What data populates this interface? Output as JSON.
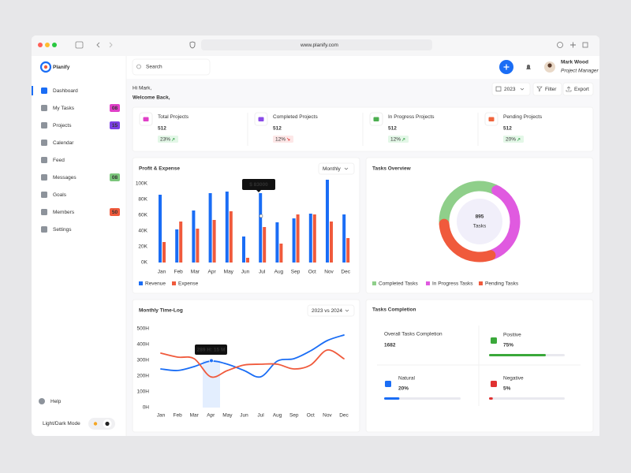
{
  "browser": {
    "url": "www.planify.com"
  },
  "brand": "Planify",
  "search_placeholder": "Search",
  "user": {
    "name": "Mark Wood",
    "role": "Project Manager"
  },
  "sidebar": {
    "items": [
      {
        "label": "Dashboard",
        "active": true
      },
      {
        "label": "My Tasks",
        "badge": "08",
        "badge_color": "#e040c8"
      },
      {
        "label": "Projects",
        "badge": "15",
        "badge_color": "#7b3fe4"
      },
      {
        "label": "Calendar"
      },
      {
        "label": "Feed"
      },
      {
        "label": "Messages",
        "badge": "08",
        "badge_color": "#7cc67c"
      },
      {
        "label": "Goals"
      },
      {
        "label": "Members",
        "badge": "50",
        "badge_color": "#f05a3c"
      },
      {
        "label": "Settings"
      }
    ],
    "help": "Help",
    "theme_toggle": "Light/Dark Mode"
  },
  "greeting": {
    "line1": "Hi Mark,",
    "line2": "Welcome Back,"
  },
  "toolbar": {
    "year": "2023",
    "filter": "Filter",
    "export": "Export"
  },
  "stats": [
    {
      "title": "Total Projects",
      "value": "512",
      "change": "23%",
      "trend": "up",
      "color": "#e040c8"
    },
    {
      "title": "Completed Projects",
      "value": "512",
      "change": "12%",
      "trend": "down",
      "color": "#8a4be8"
    },
    {
      "title": "In Progress Projects",
      "value": "512",
      "change": "12%",
      "trend": "up",
      "color": "#4caf50"
    },
    {
      "title": "Pending Projects",
      "value": "512",
      "change": "20%",
      "trend": "up",
      "color": "#f0643c"
    }
  ],
  "profit_chart": {
    "type": "bar",
    "title": "Profit & Expense",
    "period": "Monthly",
    "categories": [
      "Jan",
      "Feb",
      "Mar",
      "Apr",
      "May",
      "Jun",
      "Jul",
      "Aug",
      "Sep",
      "Oct",
      "Nov",
      "Dec"
    ],
    "series": [
      {
        "name": "Revenue",
        "color": "#1a6df5",
        "values": [
          86000,
          42000,
          66000,
          88000,
          90000,
          33000,
          88000,
          51000,
          56000,
          62000,
          105000,
          61000
        ]
      },
      {
        "name": "Expense",
        "color": "#f05a3c",
        "values": [
          26000,
          52000,
          43000,
          54000,
          65000,
          6000,
          45000,
          24000,
          61000,
          61000,
          52000,
          31000
        ]
      }
    ],
    "ylim": [
      0,
      110000
    ],
    "yticks": [
      {
        "value": 0,
        "label": "0K"
      },
      {
        "value": 20000,
        "label": "20K"
      },
      {
        "value": 40000,
        "label": "40K"
      },
      {
        "value": 60000,
        "label": "60K"
      },
      {
        "value": 80000,
        "label": "80K"
      },
      {
        "value": 100000,
        "label": "100K"
      }
    ],
    "annotation": "$ 83000"
  },
  "tasks_overview": {
    "type": "pie",
    "title": "Tasks Overview",
    "center_value": "895",
    "center_label": "Tasks",
    "categories": [
      "Completed Tasks",
      "In Progress Tasks",
      "Pending Tasks"
    ],
    "colors": [
      "#8fcf8a",
      "#e05ae0",
      "#f05a3c"
    ],
    "values": [
      33,
      37,
      30
    ]
  },
  "timelog_chart": {
    "type": "line",
    "title": "Monthly Time-Log",
    "period": "2023 vs 2024",
    "categories": [
      "Jan",
      "Feb",
      "Mar",
      "Apr",
      "May",
      "Jun",
      "Jul",
      "Aug",
      "Sep",
      "Oct",
      "Nov",
      "Dec"
    ],
    "series": [
      {
        "color": "#1a6df5",
        "values": [
          245,
          235,
          260,
          295,
          275,
          235,
          195,
          295,
          310,
          360,
          425,
          460
        ]
      },
      {
        "color": "#f05a3c",
        "values": [
          345,
          320,
          310,
          195,
          235,
          270,
          275,
          275,
          245,
          270,
          365,
          310
        ]
      }
    ],
    "ylim": [
      0,
      500
    ],
    "yticks": [
      {
        "value": 0,
        "label": "0H"
      },
      {
        "value": 100,
        "label": "100H"
      },
      {
        "value": 200,
        "label": "200H"
      },
      {
        "value": 300,
        "label": "300H"
      },
      {
        "value": 400,
        "label": "400H"
      },
      {
        "value": 500,
        "label": "500H"
      }
    ],
    "annotation": "289 H: 15 M"
  },
  "tasks_completion": {
    "title": "Tasks Completion",
    "overall": {
      "label": "Overall Tasks Completion",
      "value": "1682"
    },
    "metrics": [
      {
        "label": "Positive",
        "value": 75,
        "value_label": "75%",
        "color": "#3aa83a"
      },
      {
        "label": "Natural",
        "value": 20,
        "value_label": "20%",
        "color": "#1a6df5"
      },
      {
        "label": "Negative",
        "value": 5,
        "value_label": "5%",
        "color": "#e03131"
      }
    ]
  }
}
